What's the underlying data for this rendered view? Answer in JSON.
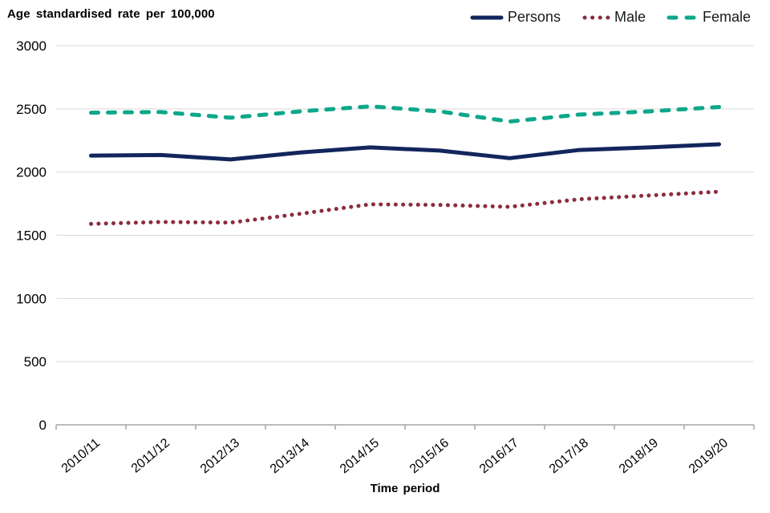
{
  "title": "Age standardised rate per 100,000",
  "axis": {
    "xlabel": "Time period"
  },
  "chart_data": {
    "type": "line",
    "title": "Age standardised rate per 100,000",
    "xlabel": "Time period",
    "ylabel": "Age standardised rate per 100,000",
    "x": [
      "2010/11",
      "2011/12",
      "2012/13",
      "2013/14",
      "2014/15",
      "2015/16",
      "2016/17",
      "2017/18",
      "2018/19",
      "2019/20"
    ],
    "series": [
      {
        "name": "Persons",
        "color": "#12265c",
        "style": "solid",
        "values": [
          2130,
          2135,
          2100,
          2155,
          2195,
          2170,
          2110,
          2175,
          2195,
          2220
        ]
      },
      {
        "name": "Male",
        "color": "#8b2d40",
        "style": "dotted",
        "values": [
          1590,
          1605,
          1600,
          1670,
          1745,
          1740,
          1725,
          1785,
          1815,
          1845
        ]
      },
      {
        "name": "Female",
        "color": "#0da78a",
        "style": "dashed",
        "values": [
          2470,
          2475,
          2430,
          2480,
          2520,
          2480,
          2400,
          2455,
          2480,
          2515
        ]
      }
    ],
    "ylim": [
      0,
      3000
    ],
    "yticks": [
      0,
      500,
      1000,
      1500,
      2000,
      2500,
      3000
    ],
    "grid": true,
    "grid_color": "#d9d9d9",
    "axis_color": "#a6a6a6",
    "tick_label_color": "#000000",
    "legend_position": "top-right"
  }
}
